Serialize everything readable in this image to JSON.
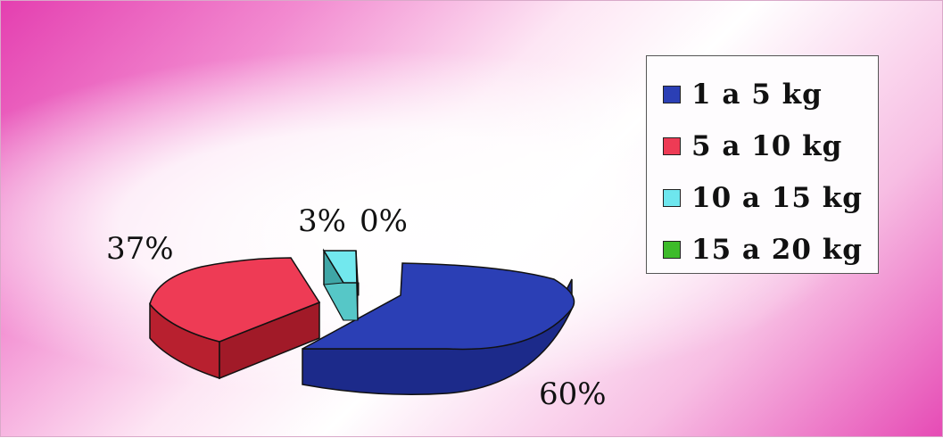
{
  "chart_data": {
    "type": "pie",
    "title": "",
    "categories": [
      "1 a 5 kg",
      "5 a 10 kg",
      "10 a 15 kg",
      "15 a 20 kg"
    ],
    "values": [
      60,
      37,
      3,
      0
    ],
    "value_labels": [
      "60%",
      "37%",
      "3%",
      "0%"
    ],
    "colors": [
      "#2b3fb5",
      "#ee3b55",
      "#6ee6ee",
      "#3dbb2a"
    ],
    "exploded": true,
    "three_d": true,
    "legend_position": "top-right"
  }
}
